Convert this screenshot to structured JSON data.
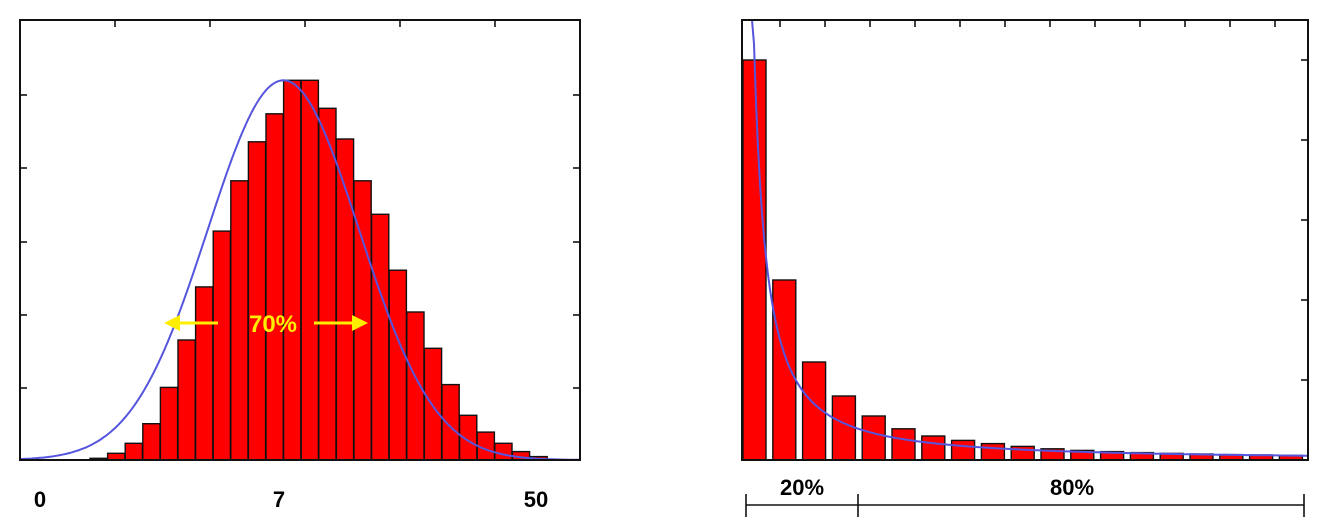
{
  "colors": {
    "bar_fill": "#ff0000",
    "bar_edge": "#111111",
    "curve": "#5555dd",
    "annotation": "#ffee00",
    "axis": "#111111",
    "background": "#ffffff"
  },
  "chart_data": [
    {
      "type": "bar",
      "title": "",
      "xlabel": "",
      "ylabel": "",
      "grid": false,
      "x_tick_labels": [
        "0",
        "7",
        "50"
      ],
      "values": [
        0.3,
        1.2,
        3.0,
        6.5,
        13.0,
        21.5,
        31.0,
        41.0,
        50.0,
        57.0,
        62.0,
        68.0,
        68.0,
        63.0,
        57.5,
        50.0,
        44.0,
        34.0,
        26.5,
        20.0,
        13.5,
        8.0,
        5.0,
        3.0,
        1.5,
        0.6
      ],
      "ylim": [
        0,
        72
      ],
      "fit_curve": "normal",
      "annotations": [
        {
          "text": "70%",
          "type": "double-arrow"
        }
      ]
    },
    {
      "type": "bar",
      "title": "",
      "xlabel": "",
      "ylabel": "",
      "grid": false,
      "values": [
        1000,
        450,
        245,
        160,
        110,
        78,
        60,
        49,
        41,
        34,
        28,
        24,
        21,
        18.5,
        16.5,
        15,
        13.5,
        12.5,
        11.5
      ],
      "ylim": [
        0,
        1100
      ],
      "fit_curve": "power-law",
      "annotations": [
        {
          "text": "20%",
          "type": "bracket"
        },
        {
          "text": "80%",
          "type": "bracket"
        }
      ]
    }
  ]
}
